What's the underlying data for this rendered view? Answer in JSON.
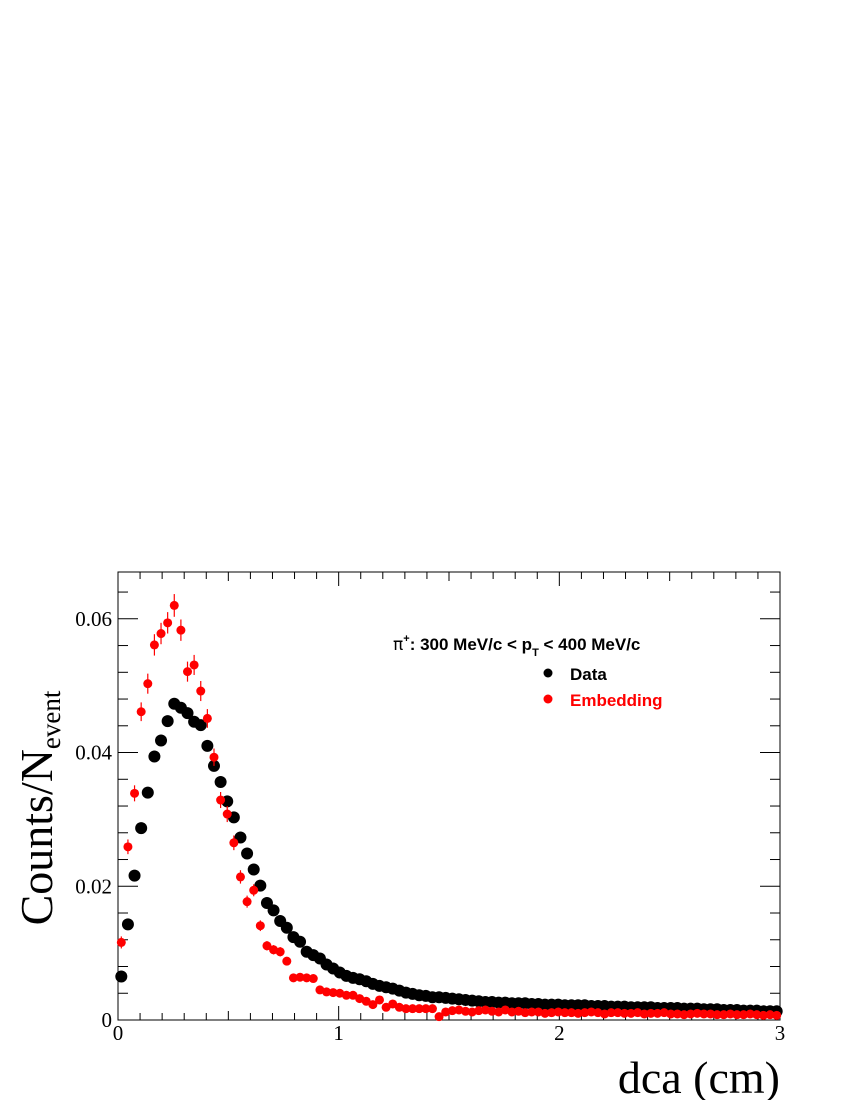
{
  "chart_data": {
    "type": "scatter",
    "xlabel": "dca (cm)",
    "ylabel_main": "Counts/N",
    "ylabel_sub": "event",
    "xlim": [
      0,
      3
    ],
    "ylim": [
      0,
      0.067
    ],
    "x_ticks": [
      0,
      1,
      2,
      3
    ],
    "x_tick_labels": [
      "0",
      "1",
      "2",
      "3"
    ],
    "y_ticks": [
      0,
      0.02,
      0.04,
      0.06
    ],
    "y_tick_labels": [
      "0",
      "0.02",
      "0.04",
      "0.06"
    ],
    "grid": false,
    "legend_position": "top-right",
    "annotation": {
      "prefix": "π",
      "sup": "+",
      "middle": ": 300 MeV/c < p",
      "sub": "T",
      "suffix": " < 400 MeV/c"
    },
    "series": [
      {
        "name": "Data",
        "color": "#000000",
        "x": [
          0.015,
          0.045,
          0.075,
          0.105,
          0.135,
          0.165,
          0.195,
          0.225,
          0.255,
          0.285,
          0.315,
          0.345,
          0.375,
          0.405,
          0.435,
          0.465,
          0.495,
          0.525,
          0.555,
          0.585,
          0.615,
          0.645,
          0.675,
          0.705,
          0.735,
          0.765,
          0.795,
          0.825,
          0.855,
          0.885,
          0.915,
          0.945,
          0.975,
          1.005,
          1.035,
          1.065,
          1.095,
          1.125,
          1.155,
          1.185,
          1.215,
          1.245,
          1.275,
          1.305,
          1.335,
          1.365,
          1.395,
          1.425,
          1.455,
          1.485,
          1.515,
          1.545,
          1.575,
          1.605,
          1.635,
          1.665,
          1.695,
          1.725,
          1.755,
          1.785,
          1.815,
          1.845,
          1.875,
          1.905,
          1.935,
          1.965,
          1.995,
          2.025,
          2.055,
          2.085,
          2.115,
          2.145,
          2.175,
          2.205,
          2.235,
          2.265,
          2.295,
          2.325,
          2.355,
          2.385,
          2.415,
          2.445,
          2.475,
          2.505,
          2.535,
          2.565,
          2.595,
          2.625,
          2.655,
          2.685,
          2.715,
          2.745,
          2.775,
          2.805,
          2.835,
          2.865,
          2.895,
          2.925,
          2.955,
          2.985
        ],
        "y": [
          0.0065,
          0.0143,
          0.0216,
          0.0287,
          0.034,
          0.0394,
          0.0418,
          0.0447,
          0.0473,
          0.0467,
          0.0459,
          0.0446,
          0.0441,
          0.041,
          0.038,
          0.0356,
          0.0327,
          0.0303,
          0.0273,
          0.0249,
          0.0225,
          0.0201,
          0.0175,
          0.0164,
          0.0148,
          0.0138,
          0.0124,
          0.0117,
          0.0102,
          0.0097,
          0.0092,
          0.0083,
          0.0077,
          0.0071,
          0.0066,
          0.0063,
          0.0061,
          0.0058,
          0.0054,
          0.0051,
          0.0049,
          0.0047,
          0.0044,
          0.0041,
          0.0039,
          0.0037,
          0.0036,
          0.0034,
          0.0034,
          0.0033,
          0.0032,
          0.0031,
          0.003,
          0.0029,
          0.0028,
          0.0027,
          0.0027,
          0.0026,
          0.0026,
          0.0025,
          0.0025,
          0.0025,
          0.0024,
          0.0024,
          0.0023,
          0.0023,
          0.0023,
          0.0022,
          0.0022,
          0.0022,
          0.0022,
          0.0021,
          0.0021,
          0.0021,
          0.002,
          0.002,
          0.002,
          0.0019,
          0.0019,
          0.0019,
          0.0019,
          0.0018,
          0.0018,
          0.0018,
          0.0018,
          0.0017,
          0.0017,
          0.0017,
          0.0016,
          0.0016,
          0.0016,
          0.0015,
          0.0015,
          0.0015,
          0.0014,
          0.0014,
          0.0014,
          0.0013,
          0.0013,
          0.0013
        ]
      },
      {
        "name": "Embedding",
        "color": "#ff0000",
        "x": [
          0.015,
          0.045,
          0.075,
          0.105,
          0.135,
          0.165,
          0.195,
          0.225,
          0.255,
          0.285,
          0.315,
          0.345,
          0.375,
          0.405,
          0.435,
          0.465,
          0.495,
          0.525,
          0.555,
          0.585,
          0.615,
          0.645,
          0.675,
          0.705,
          0.735,
          0.765,
          0.795,
          0.825,
          0.855,
          0.885,
          0.915,
          0.945,
          0.975,
          1.005,
          1.035,
          1.065,
          1.095,
          1.125,
          1.155,
          1.185,
          1.215,
          1.245,
          1.275,
          1.305,
          1.335,
          1.365,
          1.395,
          1.425,
          1.455,
          1.485,
          1.515,
          1.545,
          1.575,
          1.605,
          1.635,
          1.665,
          1.695,
          1.725,
          1.755,
          1.785,
          1.815,
          1.845,
          1.875,
          1.905,
          1.935,
          1.965,
          1.995,
          2.025,
          2.055,
          2.085,
          2.115,
          2.145,
          2.175,
          2.205,
          2.235,
          2.265,
          2.295,
          2.325,
          2.355,
          2.385,
          2.415,
          2.445,
          2.475,
          2.505,
          2.535,
          2.565,
          2.595,
          2.625,
          2.655,
          2.685,
          2.715,
          2.745,
          2.775,
          2.805,
          2.835,
          2.865,
          2.895,
          2.925,
          2.955,
          2.985
        ],
        "y": [
          0.0116,
          0.0259,
          0.0339,
          0.0461,
          0.0503,
          0.0561,
          0.0578,
          0.0594,
          0.062,
          0.0583,
          0.0521,
          0.0531,
          0.0492,
          0.0451,
          0.0393,
          0.0329,
          0.0308,
          0.0265,
          0.0214,
          0.0177,
          0.0194,
          0.0141,
          0.0111,
          0.0105,
          0.0102,
          0.0088,
          0.0063,
          0.0064,
          0.0063,
          0.0062,
          0.0045,
          0.0042,
          0.0041,
          0.004,
          0.0037,
          0.0037,
          0.0032,
          0.0028,
          0.0023,
          0.003,
          0.0019,
          0.0024,
          0.0019,
          0.0017,
          0.0017,
          0.0017,
          0.0017,
          0.0017,
          0.0005,
          0.0012,
          0.0014,
          0.0015,
          0.0013,
          0.0012,
          0.0014,
          0.0015,
          0.0013,
          0.0012,
          0.0015,
          0.0012,
          0.0013,
          0.0011,
          0.0012,
          0.0012,
          0.001,
          0.0011,
          0.0012,
          0.0011,
          0.0011,
          0.001,
          0.0011,
          0.0012,
          0.0011,
          0.0009,
          0.0011,
          0.0011,
          0.001,
          0.001,
          0.0011,
          0.0009,
          0.001,
          0.001,
          0.0011,
          0.0009,
          0.0009,
          0.0008,
          0.0009,
          0.001,
          0.0009,
          0.0009,
          0.0008,
          0.0008,
          0.0009,
          0.0008,
          0.0008,
          0.0009,
          0.0008,
          0.0007,
          0.0008,
          0.0007
        ],
        "err": [
          0.0009,
          0.0011,
          0.0012,
          0.0014,
          0.0015,
          0.0016,
          0.0016,
          0.0016,
          0.0017,
          0.0016,
          0.0015,
          0.0015,
          0.0015,
          0.0014,
          0.0013,
          0.0012,
          0.0012,
          0.0011,
          0.001,
          0.0009,
          0.0009,
          0.0008,
          0.0007,
          0.0007,
          0.0007,
          0.0006,
          0.0005,
          0.0005,
          0.0005,
          0.0005,
          0.0004,
          0.0004,
          0.0004,
          0.0004,
          0.0004,
          0.0004,
          0.0004,
          0.0003,
          0.0003,
          0.0003,
          0.0003,
          0.0003,
          0.0003,
          0.0003,
          0.0003,
          0.0003,
          0.0003,
          0.0003,
          0.0002,
          0.0002,
          0.0002,
          0.0002,
          0.0002,
          0.0002,
          0.0002,
          0.0002,
          0.0002,
          0.0002,
          0.0002,
          0.0002,
          0.0002,
          0.0002,
          0.0002,
          0.0002,
          0.0002,
          0.0002,
          0.0002,
          0.0002,
          0.0002,
          0.0002,
          0.0002,
          0.0002,
          0.0002,
          0.0002,
          0.0002,
          0.0002,
          0.0002,
          0.0002,
          0.0002,
          0.0002,
          0.0002,
          0.0002,
          0.0002,
          0.0002,
          0.0002,
          0.0002,
          0.0002,
          0.0002,
          0.0002,
          0.0002,
          0.0002,
          0.0002,
          0.0002,
          0.0002,
          0.0002,
          0.0002,
          0.0002,
          0.0002,
          0.0002,
          0.0002
        ]
      }
    ]
  }
}
